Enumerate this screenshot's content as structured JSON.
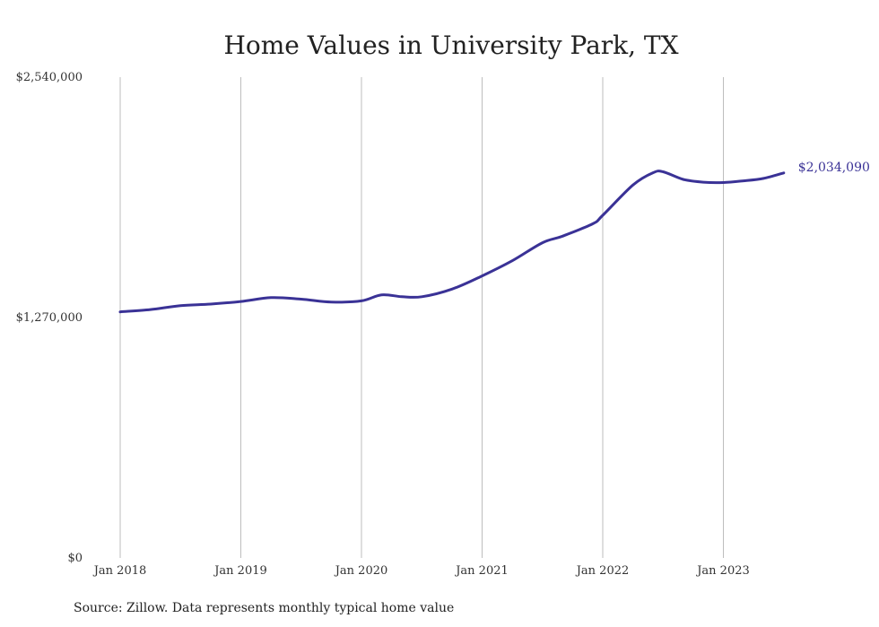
{
  "chart_data": {
    "type": "line",
    "title": "Home Values in University Park, TX",
    "source": "Source: Zillow. Data represents monthly typical home value",
    "ylim": [
      0,
      2540000
    ],
    "y_ticks": [
      {
        "value": 0,
        "label": "$0"
      },
      {
        "value": 1270000,
        "label": "$1,270,000"
      },
      {
        "value": 2540000,
        "label": "$2,540,000"
      }
    ],
    "x_ticks": [
      {
        "value": "2018-01",
        "label": "Jan 2018"
      },
      {
        "value": "2019-01",
        "label": "Jan 2019"
      },
      {
        "value": "2020-01",
        "label": "Jan 2020"
      },
      {
        "value": "2021-01",
        "label": "Jan 2021"
      },
      {
        "value": "2022-01",
        "label": "Jan 2022"
      },
      {
        "value": "2023-01",
        "label": "Jan 2023"
      }
    ],
    "grid": "vertical",
    "color": "#3a3296",
    "end_label": "$2,034,090",
    "series": [
      {
        "x": [
          "2018-01",
          "2018-04",
          "2018-07",
          "2018-10",
          "2019-01",
          "2019-04",
          "2019-07",
          "2019-10",
          "2020-01",
          "2020-03",
          "2020-05",
          "2020-07",
          "2020-10",
          "2021-01",
          "2021-04",
          "2021-07",
          "2021-09",
          "2021-12",
          "2022-01",
          "2022-04",
          "2022-06",
          "2022-07",
          "2022-09",
          "2022-11",
          "2023-01",
          "2023-03",
          "2023-05",
          "2023-07"
        ],
        "y": [
          1300000,
          1312000,
          1333000,
          1341000,
          1355000,
          1375000,
          1367000,
          1352000,
          1358000,
          1390000,
          1380000,
          1380000,
          1420000,
          1490000,
          1570000,
          1665000,
          1700000,
          1765000,
          1810000,
          1970000,
          2035000,
          2040000,
          2000000,
          1985000,
          1983000,
          1992000,
          2005000,
          2034090
        ]
      }
    ]
  }
}
